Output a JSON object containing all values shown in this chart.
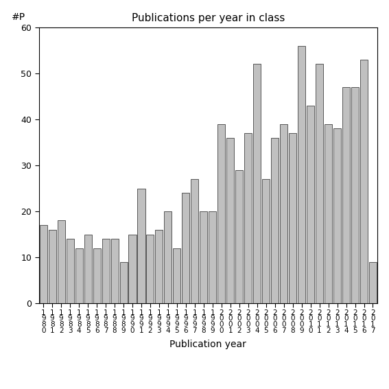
{
  "title": "Publications per year in class",
  "xlabel": "Publication year",
  "ylabel_text": "#P",
  "ylim": [
    0,
    60
  ],
  "yticks": [
    0,
    10,
    20,
    30,
    40,
    50,
    60
  ],
  "bar_color": "#c0c0c0",
  "bar_edgecolor": "#404040",
  "bar_linewidth": 0.6,
  "categories": [
    "1980",
    "1981",
    "1982",
    "1983",
    "1984",
    "1985",
    "1986",
    "1987",
    "1988",
    "1989",
    "1990",
    "1991",
    "1992",
    "1993",
    "1994",
    "1995",
    "1996",
    "1997",
    "1998",
    "1999",
    "2000",
    "2001",
    "2002",
    "2003",
    "2004",
    "2005",
    "2006",
    "2007",
    "2008",
    "2009",
    "2010",
    "2011",
    "2012",
    "2013",
    "2014",
    "2015",
    "2016",
    "2017"
  ],
  "values": [
    17,
    16,
    18,
    14,
    12,
    15,
    12,
    14,
    14,
    9,
    15,
    25,
    15,
    16,
    20,
    12,
    24,
    27,
    20,
    20,
    39,
    36,
    29,
    37,
    52,
    27,
    36,
    39,
    37,
    56,
    43,
    52,
    39,
    38,
    47,
    47,
    53,
    9
  ]
}
